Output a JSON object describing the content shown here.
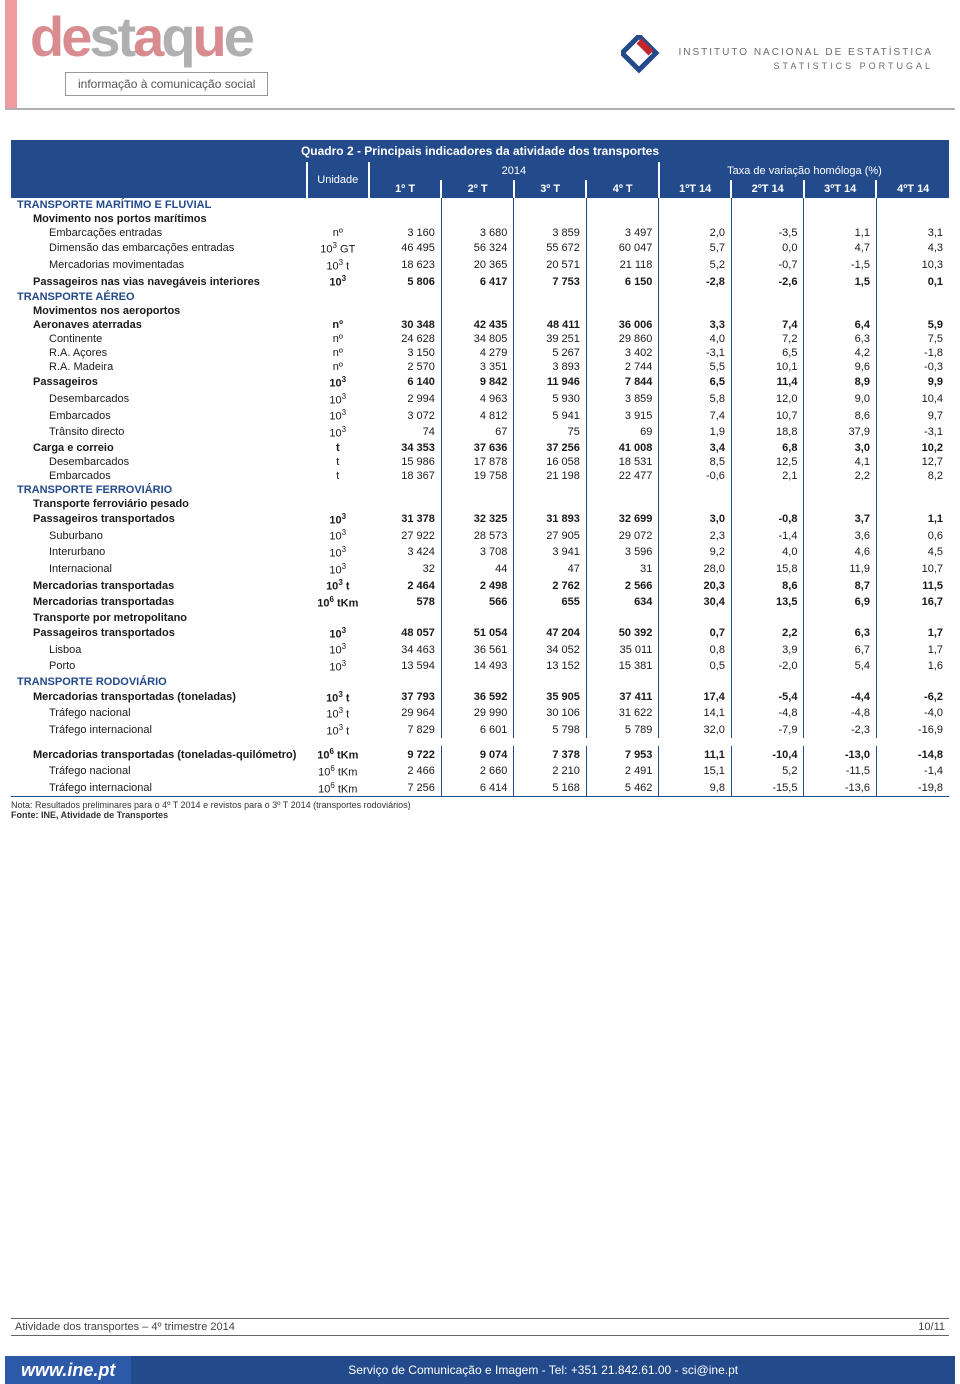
{
  "header": {
    "logo_text": "destaque",
    "tagline": "informação à comunicação social",
    "org_line1": "INSTITUTO NACIONAL DE ESTATÍSTICA",
    "org_line2": "STATISTICS PORTUGAL",
    "accent_color": "#d88c90",
    "brand_blue": "#234a8b"
  },
  "table": {
    "title": "Quadro 2 - Principais indicadores da atividade dos transportes",
    "unit_header": "Unidade",
    "group_2014": "2014",
    "group_var": "Taxa de variação homóloga (%)",
    "col_labels": [
      "1º T",
      "2º T",
      "3º T",
      "4º T",
      "1ºT 14",
      "2ºT 14",
      "3ºT 14",
      "4ºT 14"
    ],
    "sections": [
      {
        "type": "section",
        "label": "TRANSPORTE MARÍTIMO E FLUVIAL"
      },
      {
        "type": "subhead",
        "indent": 1,
        "label": "Movimento nos portos marítimos"
      },
      {
        "type": "row",
        "indent": 2,
        "label": "Embarcações entradas",
        "unit": "nº",
        "vals": [
          "3 160",
          "3 680",
          "3 859",
          "3 497",
          "2,0",
          "-3,5",
          "1,1",
          "3,1"
        ]
      },
      {
        "type": "row",
        "indent": 2,
        "label": "Dimensão das embarcações entradas",
        "unit": "10³ GT",
        "vals": [
          "46 495",
          "56 324",
          "55 672",
          "60 047",
          "5,7",
          "0,0",
          "4,7",
          "4,3"
        ]
      },
      {
        "type": "row",
        "indent": 2,
        "label": "Mercadorias movimentadas",
        "unit": "10³ t",
        "vals": [
          "18 623",
          "20 365",
          "20 571",
          "21 118",
          "5,2",
          "-0,7",
          "-1,5",
          "10,3"
        ]
      },
      {
        "type": "bold",
        "indent": 1,
        "label": "Passageiros nas vias navegáveis interiores",
        "unit": "10³",
        "vals": [
          "5 806",
          "6 417",
          "7 753",
          "6 150",
          "-2,8",
          "-2,6",
          "1,5",
          "0,1"
        ]
      },
      {
        "type": "section",
        "label": "TRANSPORTE AÉREO"
      },
      {
        "type": "subhead",
        "indent": 1,
        "label": "Movimentos nos aeroportos"
      },
      {
        "type": "bold",
        "indent": 1,
        "label": "Aeronaves aterradas",
        "unit": "nº",
        "vals": [
          "30 348",
          "42 435",
          "48 411",
          "36 006",
          "3,3",
          "7,4",
          "6,4",
          "5,9"
        ]
      },
      {
        "type": "row",
        "indent": 2,
        "label": "Continente",
        "unit": "nº",
        "vals": [
          "24 628",
          "34 805",
          "39 251",
          "29 860",
          "4,0",
          "7,2",
          "6,3",
          "7,5"
        ]
      },
      {
        "type": "row",
        "indent": 2,
        "label": "R.A. Açores",
        "unit": "nº",
        "vals": [
          "3 150",
          "4 279",
          "5 267",
          "3 402",
          "-3,1",
          "6,5",
          "4,2",
          "-1,8"
        ]
      },
      {
        "type": "row",
        "indent": 2,
        "label": "R.A. Madeira",
        "unit": "nº",
        "vals": [
          "2 570",
          "3 351",
          "3 893",
          "2 744",
          "5,5",
          "10,1",
          "9,6",
          "-0,3"
        ]
      },
      {
        "type": "bold",
        "indent": 1,
        "label": "Passageiros",
        "unit": "10³",
        "vals": [
          "6 140",
          "9 842",
          "11 946",
          "7 844",
          "6,5",
          "11,4",
          "8,9",
          "9,9"
        ]
      },
      {
        "type": "row",
        "indent": 2,
        "label": "Desembarcados",
        "unit": "10³",
        "vals": [
          "2 994",
          "4 963",
          "5 930",
          "3 859",
          "5,8",
          "12,0",
          "9,0",
          "10,4"
        ]
      },
      {
        "type": "row",
        "indent": 2,
        "label": "Embarcados",
        "unit": "10³",
        "vals": [
          "3 072",
          "4 812",
          "5 941",
          "3 915",
          "7,4",
          "10,7",
          "8,6",
          "9,7"
        ]
      },
      {
        "type": "row",
        "indent": 2,
        "label": "Trânsito directo",
        "unit": "10³",
        "vals": [
          "74",
          "67",
          "75",
          "69",
          "1,9",
          "18,8",
          "37,9",
          "-3,1"
        ]
      },
      {
        "type": "bold",
        "indent": 1,
        "label": "Carga e correio",
        "unit": "t",
        "vals": [
          "34 353",
          "37 636",
          "37 256",
          "41 008",
          "3,4",
          "6,8",
          "3,0",
          "10,2"
        ]
      },
      {
        "type": "row",
        "indent": 2,
        "label": "Desembarcados",
        "unit": "t",
        "vals": [
          "15 986",
          "17 878",
          "16 058",
          "18 531",
          "8,5",
          "12,5",
          "4,1",
          "12,7"
        ]
      },
      {
        "type": "row",
        "indent": 2,
        "label": "Embarcados",
        "unit": "t",
        "vals": [
          "18 367",
          "19 758",
          "21 198",
          "22 477",
          "-0,6",
          "2,1",
          "2,2",
          "8,2"
        ]
      },
      {
        "type": "section",
        "label": "TRANSPORTE FERROVIÁRIO"
      },
      {
        "type": "subhead",
        "indent": 1,
        "label": "Transporte ferroviário pesado"
      },
      {
        "type": "bold",
        "indent": 1,
        "label": "Passageiros transportados",
        "unit": "10³",
        "vals": [
          "31 378",
          "32 325",
          "31 893",
          "32 699",
          "3,0",
          "-0,8",
          "3,7",
          "1,1"
        ]
      },
      {
        "type": "row",
        "indent": 2,
        "label": "Suburbano",
        "unit": "10³",
        "vals": [
          "27 922",
          "28 573",
          "27 905",
          "29 072",
          "2,3",
          "-1,4",
          "3,6",
          "0,6"
        ]
      },
      {
        "type": "row",
        "indent": 2,
        "label": "Interurbano",
        "unit": "10³",
        "vals": [
          "3 424",
          "3 708",
          "3 941",
          "3 596",
          "9,2",
          "4,0",
          "4,6",
          "4,5"
        ]
      },
      {
        "type": "row",
        "indent": 2,
        "label": "Internacional",
        "unit": "10³",
        "vals": [
          "32",
          "44",
          "47",
          "31",
          "28,0",
          "15,8",
          "11,9",
          "10,7"
        ]
      },
      {
        "type": "bold",
        "indent": 1,
        "label": "Mercadorias transportadas",
        "unit": "10³ t",
        "vals": [
          "2 464",
          "2 498",
          "2 762",
          "2 566",
          "20,3",
          "8,6",
          "8,7",
          "11,5"
        ]
      },
      {
        "type": "bold",
        "indent": 1,
        "label": "Mercadorias transportadas",
        "unit": "10⁶ tKm",
        "vals": [
          "578",
          "566",
          "655",
          "634",
          "30,4",
          "13,5",
          "6,9",
          "16,7"
        ]
      },
      {
        "type": "subhead",
        "indent": 1,
        "label": "Transporte por metropolitano"
      },
      {
        "type": "bold",
        "indent": 1,
        "label": "Passageiros transportados",
        "unit": "10³",
        "vals": [
          "48 057",
          "51 054",
          "47 204",
          "50 392",
          "0,7",
          "2,2",
          "6,3",
          "1,7"
        ]
      },
      {
        "type": "row",
        "indent": 2,
        "label": "Lisboa",
        "unit": "10³",
        "vals": [
          "34 463",
          "36 561",
          "34 052",
          "35 011",
          "0,8",
          "3,9",
          "6,7",
          "1,7"
        ]
      },
      {
        "type": "row",
        "indent": 2,
        "label": "Porto",
        "unit": "10³",
        "vals": [
          "13 594",
          "14 493",
          "13 152",
          "15 381",
          "0,5",
          "-2,0",
          "5,4",
          "1,6"
        ]
      },
      {
        "type": "section",
        "label": "TRANSPORTE RODOVIÁRIO"
      },
      {
        "type": "bold",
        "indent": 1,
        "label": "Mercadorias transportadas (toneladas)",
        "unit": "10³ t",
        "vals": [
          "37 793",
          "36 592",
          "35 905",
          "37 411",
          "17,4",
          "-5,4",
          "-4,4",
          "-6,2"
        ]
      },
      {
        "type": "row",
        "indent": 2,
        "label": "Tráfego nacional",
        "unit": "10³ t",
        "vals": [
          "29 964",
          "29 990",
          "30 106",
          "31 622",
          "14,1",
          "-4,8",
          "-4,8",
          "-4,0"
        ]
      },
      {
        "type": "row",
        "indent": 2,
        "label": "Tráfego internacional",
        "unit": "10³ t",
        "vals": [
          "7 829",
          "6 601",
          "5 798",
          "5 789",
          "32,0",
          "-7,9",
          "-2,3",
          "-16,9"
        ]
      },
      {
        "type": "gap"
      },
      {
        "type": "bold",
        "indent": 1,
        "label": "Mercadorias transportadas (toneladas-quilómetro)",
        "unit": "10⁶ tKm",
        "vals": [
          "9 722",
          "9 074",
          "7 378",
          "7 953",
          "11,1",
          "-10,4",
          "-13,0",
          "-14,8"
        ]
      },
      {
        "type": "row",
        "indent": 2,
        "label": "Tráfego nacional",
        "unit": "10⁶ tKm",
        "vals": [
          "2 466",
          "2 660",
          "2 210",
          "2 491",
          "15,1",
          "5,2",
          "-11,5",
          "-1,4"
        ]
      },
      {
        "type": "row",
        "indent": 2,
        "label": "Tráfego internacional",
        "unit": "10⁶ tKm",
        "vals": [
          "7 256",
          "6 414",
          "5 168",
          "5 462",
          "9,8",
          "-15,5",
          "-13,6",
          "-19,8"
        ]
      }
    ]
  },
  "notes": {
    "line1": "Nota: Resultados preliminares para o 4º T 2014 e revistos para o 3º T 2014 (transportes rodoviários)",
    "line2": "Fonte: INE, Atividade de Transportes"
  },
  "footer": {
    "left": "Atividade dos transportes – 4º trimestre 2014",
    "right": "10/11",
    "url": "www.ine.pt",
    "contact": "Serviço de Comunicação e Imagem - Tel: +351 21.842.61.00 - sci@ine.pt"
  }
}
